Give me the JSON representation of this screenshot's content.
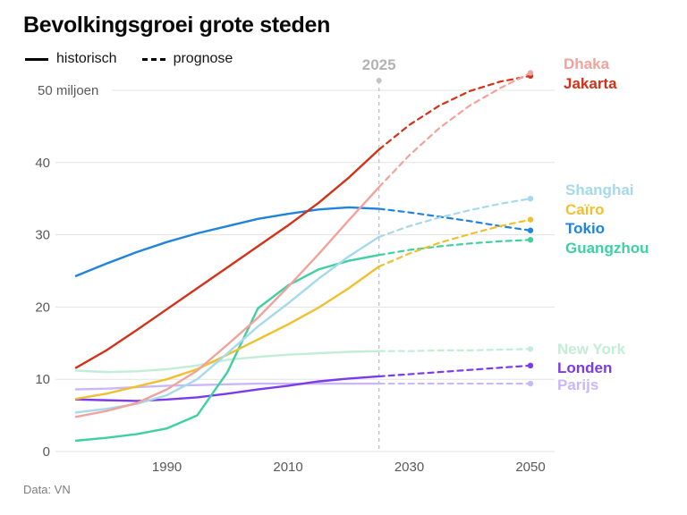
{
  "header": {
    "title": "Bevolkingsgroei grote steden"
  },
  "legend": {
    "historical": "historisch",
    "forecast": "prognose"
  },
  "footer": {
    "source": "Data: VN"
  },
  "chart_data": {
    "type": "line",
    "title": "Bevolkingsgroei grote steden",
    "unit": "miljoen",
    "ylabel": "miljoen",
    "ylim": [
      0,
      50
    ],
    "y_ticks": [
      0,
      10,
      20,
      30,
      40,
      50
    ],
    "x_ticks": [
      1990,
      2010,
      2030,
      2050
    ],
    "x_hist": [
      1975,
      1980,
      1985,
      1990,
      1995,
      2000,
      2005,
      2010,
      2015,
      2020,
      2025
    ],
    "x_prog": [
      2025,
      2030,
      2035,
      2040,
      2045,
      2050
    ],
    "forecast_divider": {
      "year": 2025,
      "label": "2025"
    },
    "grid": true,
    "legend_position": "right",
    "series": [
      {
        "name": "Dhaka",
        "color": "#f2a29b",
        "historical": [
          4.8,
          5.6,
          6.7,
          8.6,
          11.2,
          14.8,
          18.5,
          22.8,
          27.3,
          32.0,
          36.6
        ],
        "prognose": [
          36.6,
          41.0,
          44.8,
          47.9,
          50.3,
          52.4
        ]
      },
      {
        "name": "Jakarta",
        "color": "#d13218",
        "historical": [
          11.6,
          14.0,
          16.8,
          19.7,
          22.6,
          25.5,
          28.4,
          31.3,
          34.4,
          37.9,
          41.8
        ],
        "prognose": [
          41.8,
          45.2,
          47.9,
          49.9,
          51.2,
          52.0
        ]
      },
      {
        "name": "Shanghai",
        "color": "#a5d9eb",
        "historical": [
          5.4,
          5.9,
          6.6,
          7.8,
          10.0,
          13.6,
          17.3,
          20.5,
          23.9,
          27.0,
          29.7
        ],
        "prognose": [
          29.7,
          31.2,
          32.4,
          33.4,
          34.3,
          35.0
        ]
      },
      {
        "name": "Caïro",
        "color": "#f0c02f",
        "historical": [
          7.3,
          8.0,
          9.0,
          10.0,
          11.4,
          13.4,
          15.5,
          17.6,
          19.9,
          22.6,
          25.6
        ],
        "prognose": [
          25.6,
          27.4,
          28.9,
          30.1,
          31.2,
          32.1
        ]
      },
      {
        "name": "Tokio",
        "color": "#2083dc",
        "historical": [
          24.3,
          26.0,
          27.6,
          29.0,
          30.2,
          31.2,
          32.2,
          32.9,
          33.5,
          33.8,
          33.6
        ],
        "prognose": [
          33.6,
          33.1,
          32.5,
          31.9,
          31.2,
          30.6
        ]
      },
      {
        "name": "Guangzhou",
        "color": "#3fd0a2",
        "historical": [
          1.5,
          1.9,
          2.4,
          3.2,
          5.0,
          11.0,
          19.8,
          23.0,
          25.2,
          26.4,
          27.2
        ],
        "prognose": [
          27.2,
          27.9,
          28.4,
          28.8,
          29.1,
          29.3
        ]
      },
      {
        "name": "New York",
        "color": "#c2edd6",
        "historical": [
          11.2,
          11.0,
          11.1,
          11.4,
          11.9,
          12.7,
          13.1,
          13.4,
          13.6,
          13.8,
          13.9
        ],
        "prognose": [
          13.9,
          13.9,
          14.0,
          14.0,
          14.1,
          14.2
        ]
      },
      {
        "name": "Londen",
        "color": "#7b3bec",
        "historical": [
          7.2,
          7.1,
          7.0,
          7.2,
          7.5,
          8.0,
          8.6,
          9.1,
          9.7,
          10.1,
          10.4
        ],
        "prognose": [
          10.4,
          10.7,
          11.0,
          11.3,
          11.6,
          11.9
        ]
      },
      {
        "name": "Parijs",
        "color": "#c9b8f5",
        "historical": [
          8.6,
          8.7,
          8.9,
          9.1,
          9.2,
          9.3,
          9.4,
          9.4,
          9.4,
          9.4,
          9.4
        ],
        "prognose": [
          9.4,
          9.4,
          9.4,
          9.4,
          9.4,
          9.4
        ]
      }
    ],
    "colors": {
      "grid": "#e3e3e3",
      "axis_text": "#595959",
      "divider": "#c3c3c3",
      "divider_label": "#b3b3b3"
    }
  }
}
